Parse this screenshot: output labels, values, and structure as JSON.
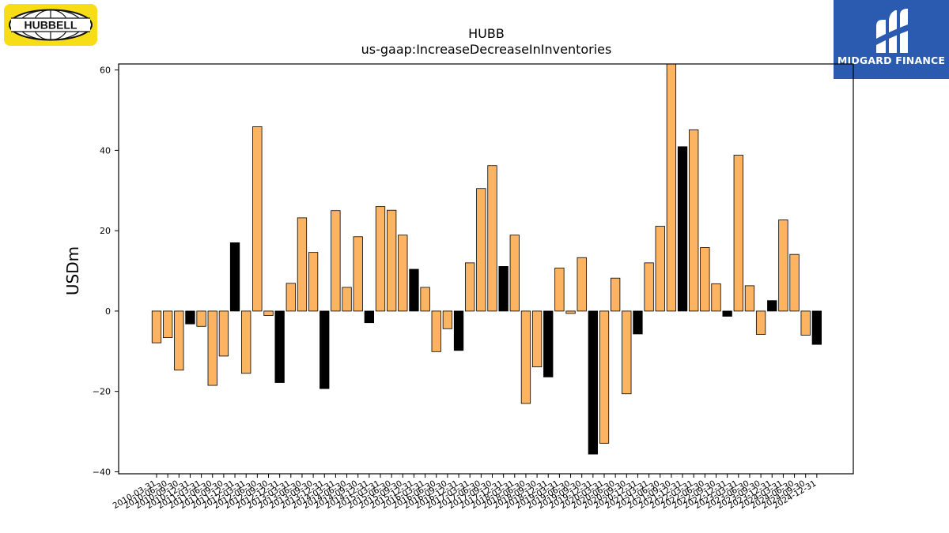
{
  "logos": {
    "left_brand": "HUBBELL",
    "right_brand": "MIDGARD FINANCE"
  },
  "colors": {
    "bar_default": "#fdb462",
    "bar_q4": "#000000",
    "left_logo_bg": "#f7dc18",
    "right_logo_bg": "#2a5bb0"
  },
  "chart_data": {
    "type": "bar",
    "title": "HUBB",
    "subtitle": "us-gaap:IncreaseDecreaseInInventories",
    "ylabel": "USDm",
    "xlabel": "",
    "ylim": [
      -40.5,
      61.5
    ],
    "yticks": [
      -40,
      -20,
      0,
      20,
      40,
      60
    ],
    "ytick_labels": [
      "−40",
      "−20",
      "0",
      "20",
      "40",
      "60"
    ],
    "grid": false,
    "legend": "none",
    "categories": [
      "2010-03-31",
      "2010-06-30",
      "2010-09-30",
      "2010-12-31",
      "2011-03-31",
      "2011-06-30",
      "2011-09-30",
      "2011-12-31",
      "2012-03-31",
      "2012-06-30",
      "2012-09-30",
      "2012-12-31",
      "2013-03-31",
      "2013-06-30",
      "2013-09-30",
      "2013-12-31",
      "2014-03-31",
      "2014-06-30",
      "2014-09-30",
      "2014-12-31",
      "2015-03-31",
      "2015-06-30",
      "2015-09-30",
      "2015-12-31",
      "2016-03-31",
      "2016-06-30",
      "2016-09-30",
      "2016-12-31",
      "2017-03-31",
      "2017-06-30",
      "2017-09-30",
      "2017-12-31",
      "2018-03-31",
      "2018-06-30",
      "2018-09-30",
      "2018-12-31",
      "2019-03-31",
      "2019-06-30",
      "2019-09-30",
      "2019-12-31",
      "2020-03-31",
      "2020-06-30",
      "2020-09-30",
      "2020-12-31",
      "2021-03-31",
      "2021-06-30",
      "2021-09-30",
      "2021-12-31",
      "2022-03-31",
      "2022-06-30",
      "2022-09-30",
      "2022-12-31",
      "2023-03-31",
      "2023-06-30",
      "2023-09-30",
      "2023-12-31",
      "2024-03-31",
      "2024-06-30",
      "2024-09-30",
      "2024-12-31"
    ],
    "values": [
      -7.9,
      -6.6,
      -14.7,
      -3.2,
      -3.8,
      -18.5,
      -11.2,
      17.0,
      -15.5,
      45.9,
      -1.1,
      -17.8,
      6.9,
      23.2,
      14.6,
      -19.3,
      25.0,
      5.9,
      18.5,
      -2.9,
      26.0,
      25.1,
      18.9,
      10.4,
      5.9,
      -10.1,
      -4.4,
      -9.8,
      12.0,
      30.5,
      36.2,
      11.1,
      18.9,
      -23.0,
      -13.9,
      -16.4,
      10.7,
      -0.6,
      13.3,
      -35.6,
      -32.9,
      8.2,
      -20.6,
      -5.7,
      12.0,
      21.1,
      61.5,
      40.9,
      45.1,
      15.8,
      6.8,
      -1.3,
      38.8,
      6.3,
      -5.8,
      2.6,
      22.7,
      14.1,
      -6.0,
      -8.3
    ]
  }
}
